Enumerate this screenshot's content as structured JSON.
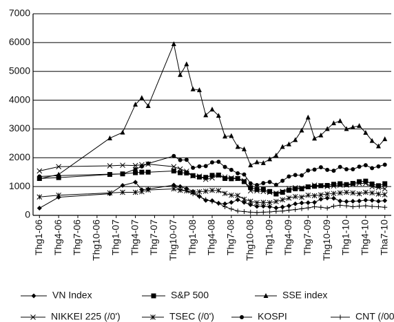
{
  "chart_data": {
    "type": "line",
    "xlim": [
      -1,
      55
    ],
    "xticks": [
      {
        "value": 0,
        "label": "Thg1-06"
      },
      {
        "value": 3,
        "label": "Thg4-06"
      },
      {
        "value": 6,
        "label": "Thg7-06"
      },
      {
        "value": 9,
        "label": "Thg10-06"
      },
      {
        "value": 12,
        "label": "Thg1-07"
      },
      {
        "value": 15,
        "label": "Thg4-07"
      },
      {
        "value": 18,
        "label": "Thg7-07"
      },
      {
        "value": 21,
        "label": "Thg10-07"
      },
      {
        "value": 24,
        "label": "Thg1-08"
      },
      {
        "value": 27,
        "label": "Thg4-08"
      },
      {
        "value": 30,
        "label": "Thg7-08"
      },
      {
        "value": 33,
        "label": "Thg10-08"
      },
      {
        "value": 36,
        "label": "Thg1-09"
      },
      {
        "value": 39,
        "label": "Thg4-09"
      },
      {
        "value": 42,
        "label": "Thg7-09"
      },
      {
        "value": 45,
        "label": "Thg10-09"
      },
      {
        "value": 48,
        "label": "Thg1-10"
      },
      {
        "value": 51,
        "label": "Thg4-10"
      },
      {
        "value": 54,
        "label": "Tha7-10"
      }
    ],
    "ylim": [
      0,
      7000
    ],
    "yticks": [
      0,
      1000,
      2000,
      3000,
      4000,
      5000,
      6000,
      7000
    ],
    "grid": true,
    "legend": "bottom",
    "x": [
      0,
      3,
      11,
      13,
      15,
      16,
      17,
      21,
      22,
      23,
      24,
      25,
      26,
      27,
      28,
      29,
      30,
      31,
      32,
      33,
      34,
      35,
      36,
      37,
      38,
      39,
      40,
      41,
      42,
      43,
      44,
      45,
      46,
      47,
      48,
      49,
      50,
      51,
      52,
      53,
      54
    ],
    "series": [
      {
        "name": "VN Index",
        "color": "#000000",
        "marker": "diamond",
        "values": [
          250,
          630,
          750,
          1040,
          1150,
          890,
          910,
          1050,
          1000,
          930,
          830,
          660,
          520,
          510,
          420,
          400,
          450,
          540,
          450,
          370,
          310,
          320,
          300,
          260,
          290,
          330,
          400,
          430,
          440,
          450,
          560,
          600,
          590,
          500,
          480,
          490,
          500,
          530,
          520,
          490,
          510
        ]
      },
      {
        "name": "S&P 500",
        "color": "#000000",
        "marker": "square",
        "values": [
          1280,
          1310,
          1420,
          1440,
          1480,
          1500,
          1500,
          1540,
          1480,
          1470,
          1380,
          1330,
          1320,
          1390,
          1400,
          1280,
          1270,
          1280,
          1170,
          960,
          900,
          900,
          830,
          740,
          800,
          870,
          920,
          920,
          990,
          1010,
          1030,
          1040,
          1080,
          1100,
          1070,
          1110,
          1170,
          1190,
          1090,
          1030,
          1100
        ]
      },
      {
        "name": "SSE index",
        "color": "#000000",
        "marker": "triangle",
        "values": [
          1270,
          1420,
          2680,
          2880,
          3850,
          4080,
          3800,
          5950,
          4880,
          5250,
          4380,
          4350,
          3480,
          3680,
          3460,
          2740,
          2760,
          2380,
          2300,
          1740,
          1850,
          1820,
          1950,
          2080,
          2380,
          2470,
          2620,
          2950,
          3400,
          2670,
          2780,
          3000,
          3200,
          3280,
          3000,
          3060,
          3110,
          2870,
          2590,
          2400,
          2650
        ]
      },
      {
        "name": "NIKKEI 225 (/0')",
        "color": "#000000",
        "marker": "x",
        "values": [
          1540,
          1690,
          1720,
          1740,
          1730,
          1760,
          1780,
          1690,
          1610,
          1530,
          1370,
          1360,
          1250,
          1300,
          1390,
          1330,
          1300,
          1280,
          1200,
          850,
          850,
          830,
          800,
          770,
          830,
          930,
          960,
          950,
          990,
          1050,
          1030,
          1000,
          1020,
          1050,
          1050,
          1080,
          1110,
          1110,
          990,
          960,
          920
        ]
      },
      {
        "name": "TSEC (/0')",
        "color": "#000000",
        "marker": "asterisk",
        "values": [
          640,
          700,
          780,
          800,
          800,
          820,
          880,
          920,
          870,
          850,
          800,
          820,
          840,
          870,
          860,
          760,
          700,
          690,
          560,
          490,
          440,
          450,
          440,
          480,
          540,
          600,
          650,
          630,
          700,
          680,
          710,
          740,
          760,
          780,
          800,
          780,
          750,
          800,
          780,
          740,
          720
        ]
      },
      {
        "name": "KOSPI",
        "color": "#000000",
        "marker": "circle",
        "values": [
          1350,
          1380,
          1430,
          1440,
          1600,
          1700,
          1800,
          2060,
          1920,
          1930,
          1650,
          1700,
          1710,
          1840,
          1860,
          1680,
          1580,
          1460,
          1420,
          1110,
          1050,
          1120,
          1160,
          1060,
          1200,
          1350,
          1400,
          1390,
          1560,
          1590,
          1670,
          1580,
          1550,
          1680,
          1600,
          1600,
          1690,
          1740,
          1640,
          1700,
          1760
        ]
      },
      {
        "name": "CNT (/00')",
        "color": "#000000",
        "marker": "plus",
        "values": [
          null,
          null,
          null,
          null,
          null,
          null,
          null,
          1000,
          900,
          850,
          750,
          650,
          550,
          480,
          420,
          300,
          220,
          150,
          130,
          110,
          100,
          110,
          120,
          140,
          150,
          180,
          200,
          230,
          260,
          300,
          280,
          250,
          320,
          350,
          330,
          300,
          320,
          330,
          310,
          300,
          280
        ]
      }
    ]
  }
}
